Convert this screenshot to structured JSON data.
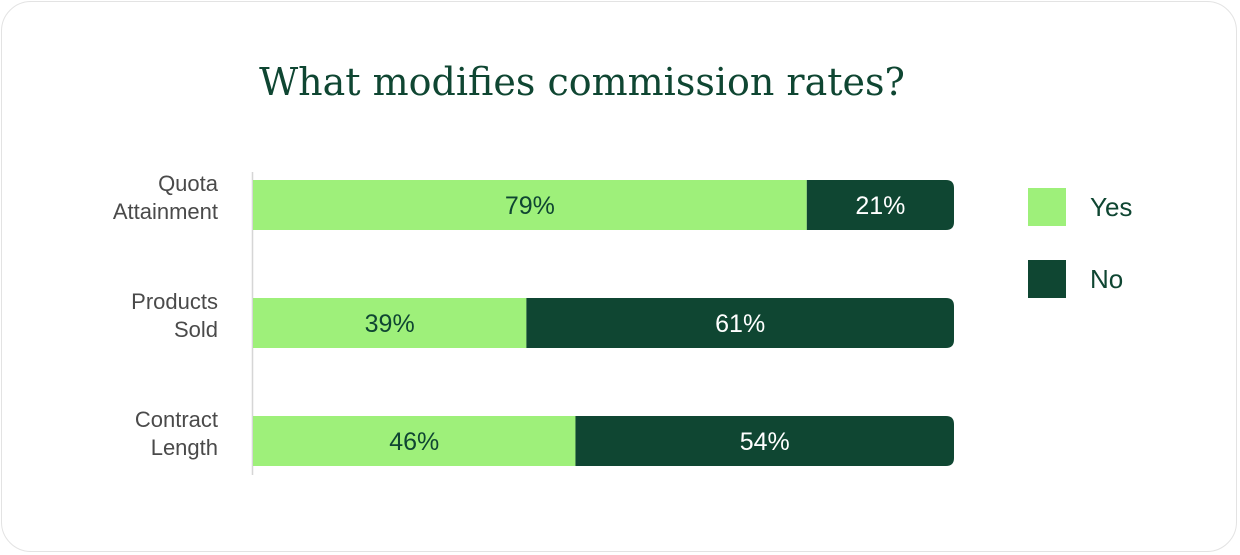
{
  "chart_data": {
    "type": "bar",
    "orientation": "horizontal",
    "stacked": true,
    "title": "What modifies commission rates?",
    "categories": [
      [
        "Quota",
        "Attainment"
      ],
      [
        "Products",
        "Sold"
      ],
      [
        "Contract",
        "Length"
      ]
    ],
    "series": [
      {
        "name": "Yes",
        "values": [
          79,
          39,
          46
        ],
        "labels": [
          "79%",
          "39%",
          "46%"
        ],
        "color": "#9ef07a",
        "text_color": "#0f4632"
      },
      {
        "name": "No",
        "values": [
          21,
          61,
          54
        ],
        "labels": [
          "21%",
          "61%",
          "54%"
        ],
        "color": "#0f4632",
        "text_color": "#ffffff"
      }
    ],
    "xlim": [
      0,
      100
    ],
    "grid": false,
    "legend_position": "right"
  }
}
